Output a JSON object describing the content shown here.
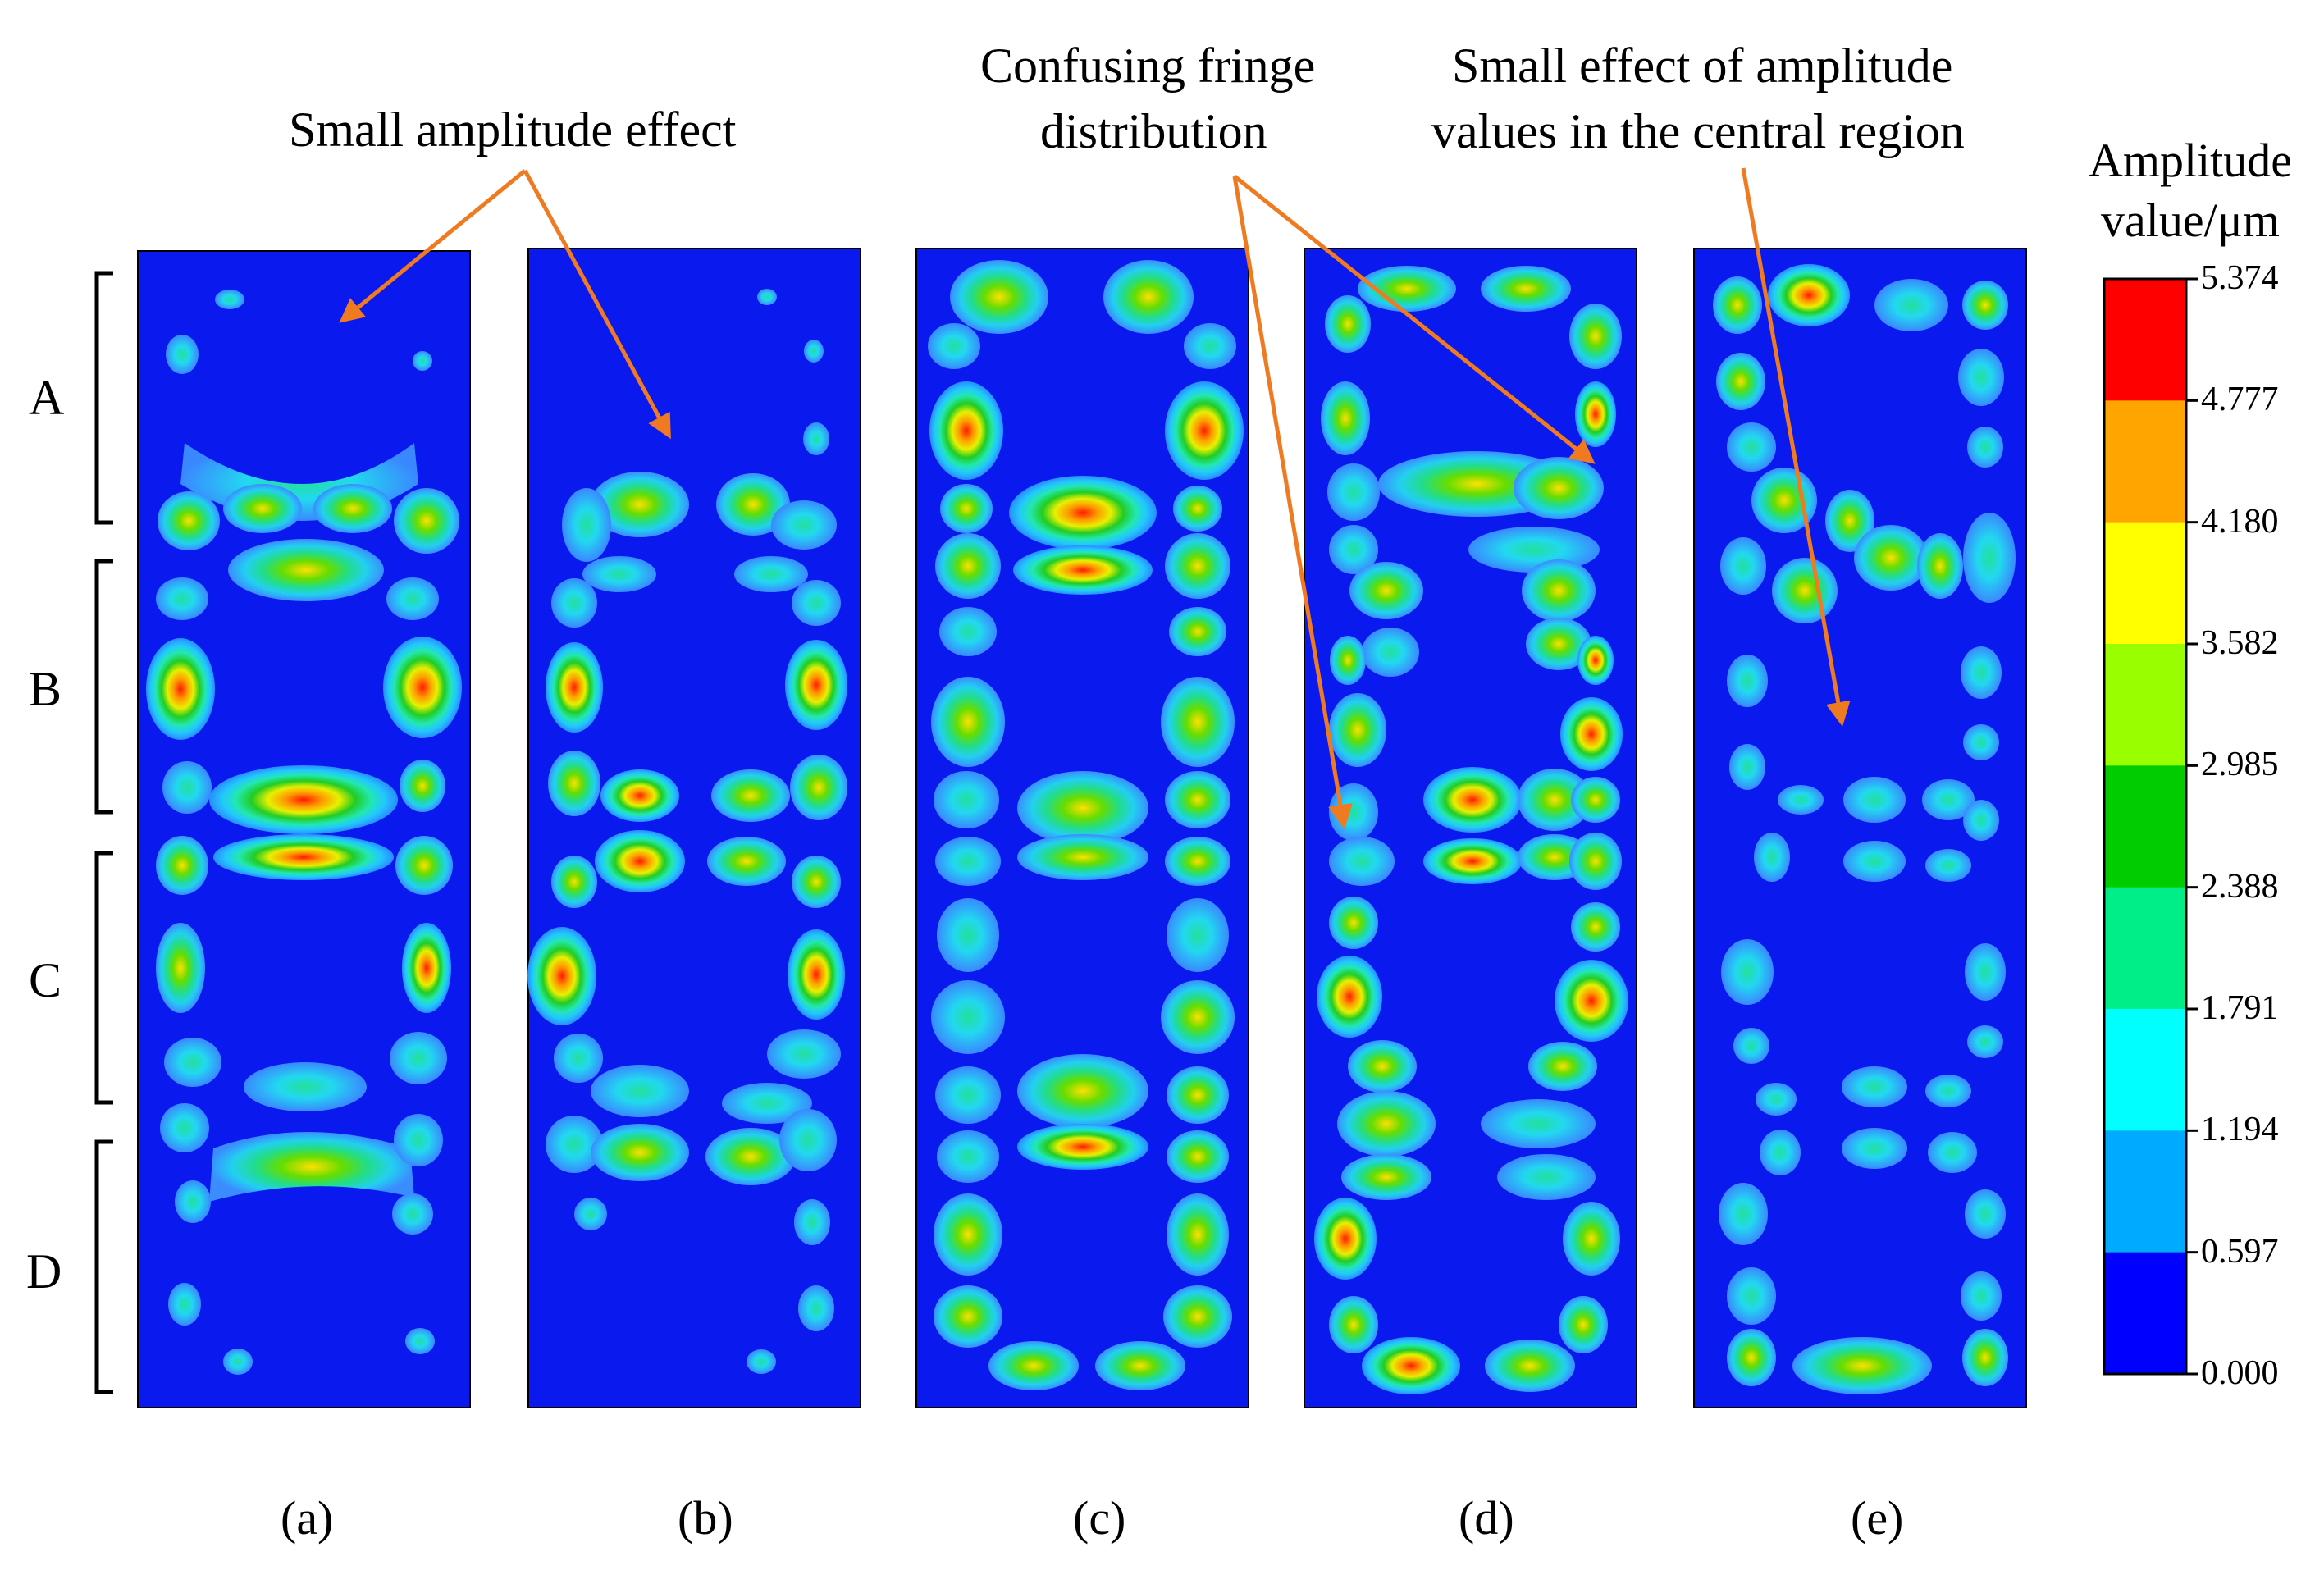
{
  "annotations": {
    "small_amplitude_effect": "Small amplitude effect",
    "confusing_fringe_line1": "Confusing fringe",
    "confusing_fringe_line2": "distribution",
    "small_effect_line1": "Small effect of amplitude",
    "small_effect_line2": "values in the central region"
  },
  "regions": [
    "A",
    "B",
    "C",
    "D"
  ],
  "panels": [
    "(a)",
    "(b)",
    "(c)",
    "(d)",
    "(e)"
  ],
  "colorbar": {
    "title_line1": "Amplitude",
    "title_line2": "value/μm",
    "ticks": [
      "5.374",
      "4.777",
      "4.180",
      "3.582",
      "2.985",
      "2.388",
      "1.791",
      "1.194",
      "0.597",
      "0.000"
    ],
    "colors": [
      "#ff0000",
      "#ffa500",
      "#ffff00",
      "#99ff00",
      "#00cc00",
      "#00ee88",
      "#00ffff",
      "#00aaff",
      "#0000ff"
    ]
  },
  "colors": {
    "background_field": "#0a1aef",
    "arrow": "#f07a20",
    "frame": "#000000"
  }
}
